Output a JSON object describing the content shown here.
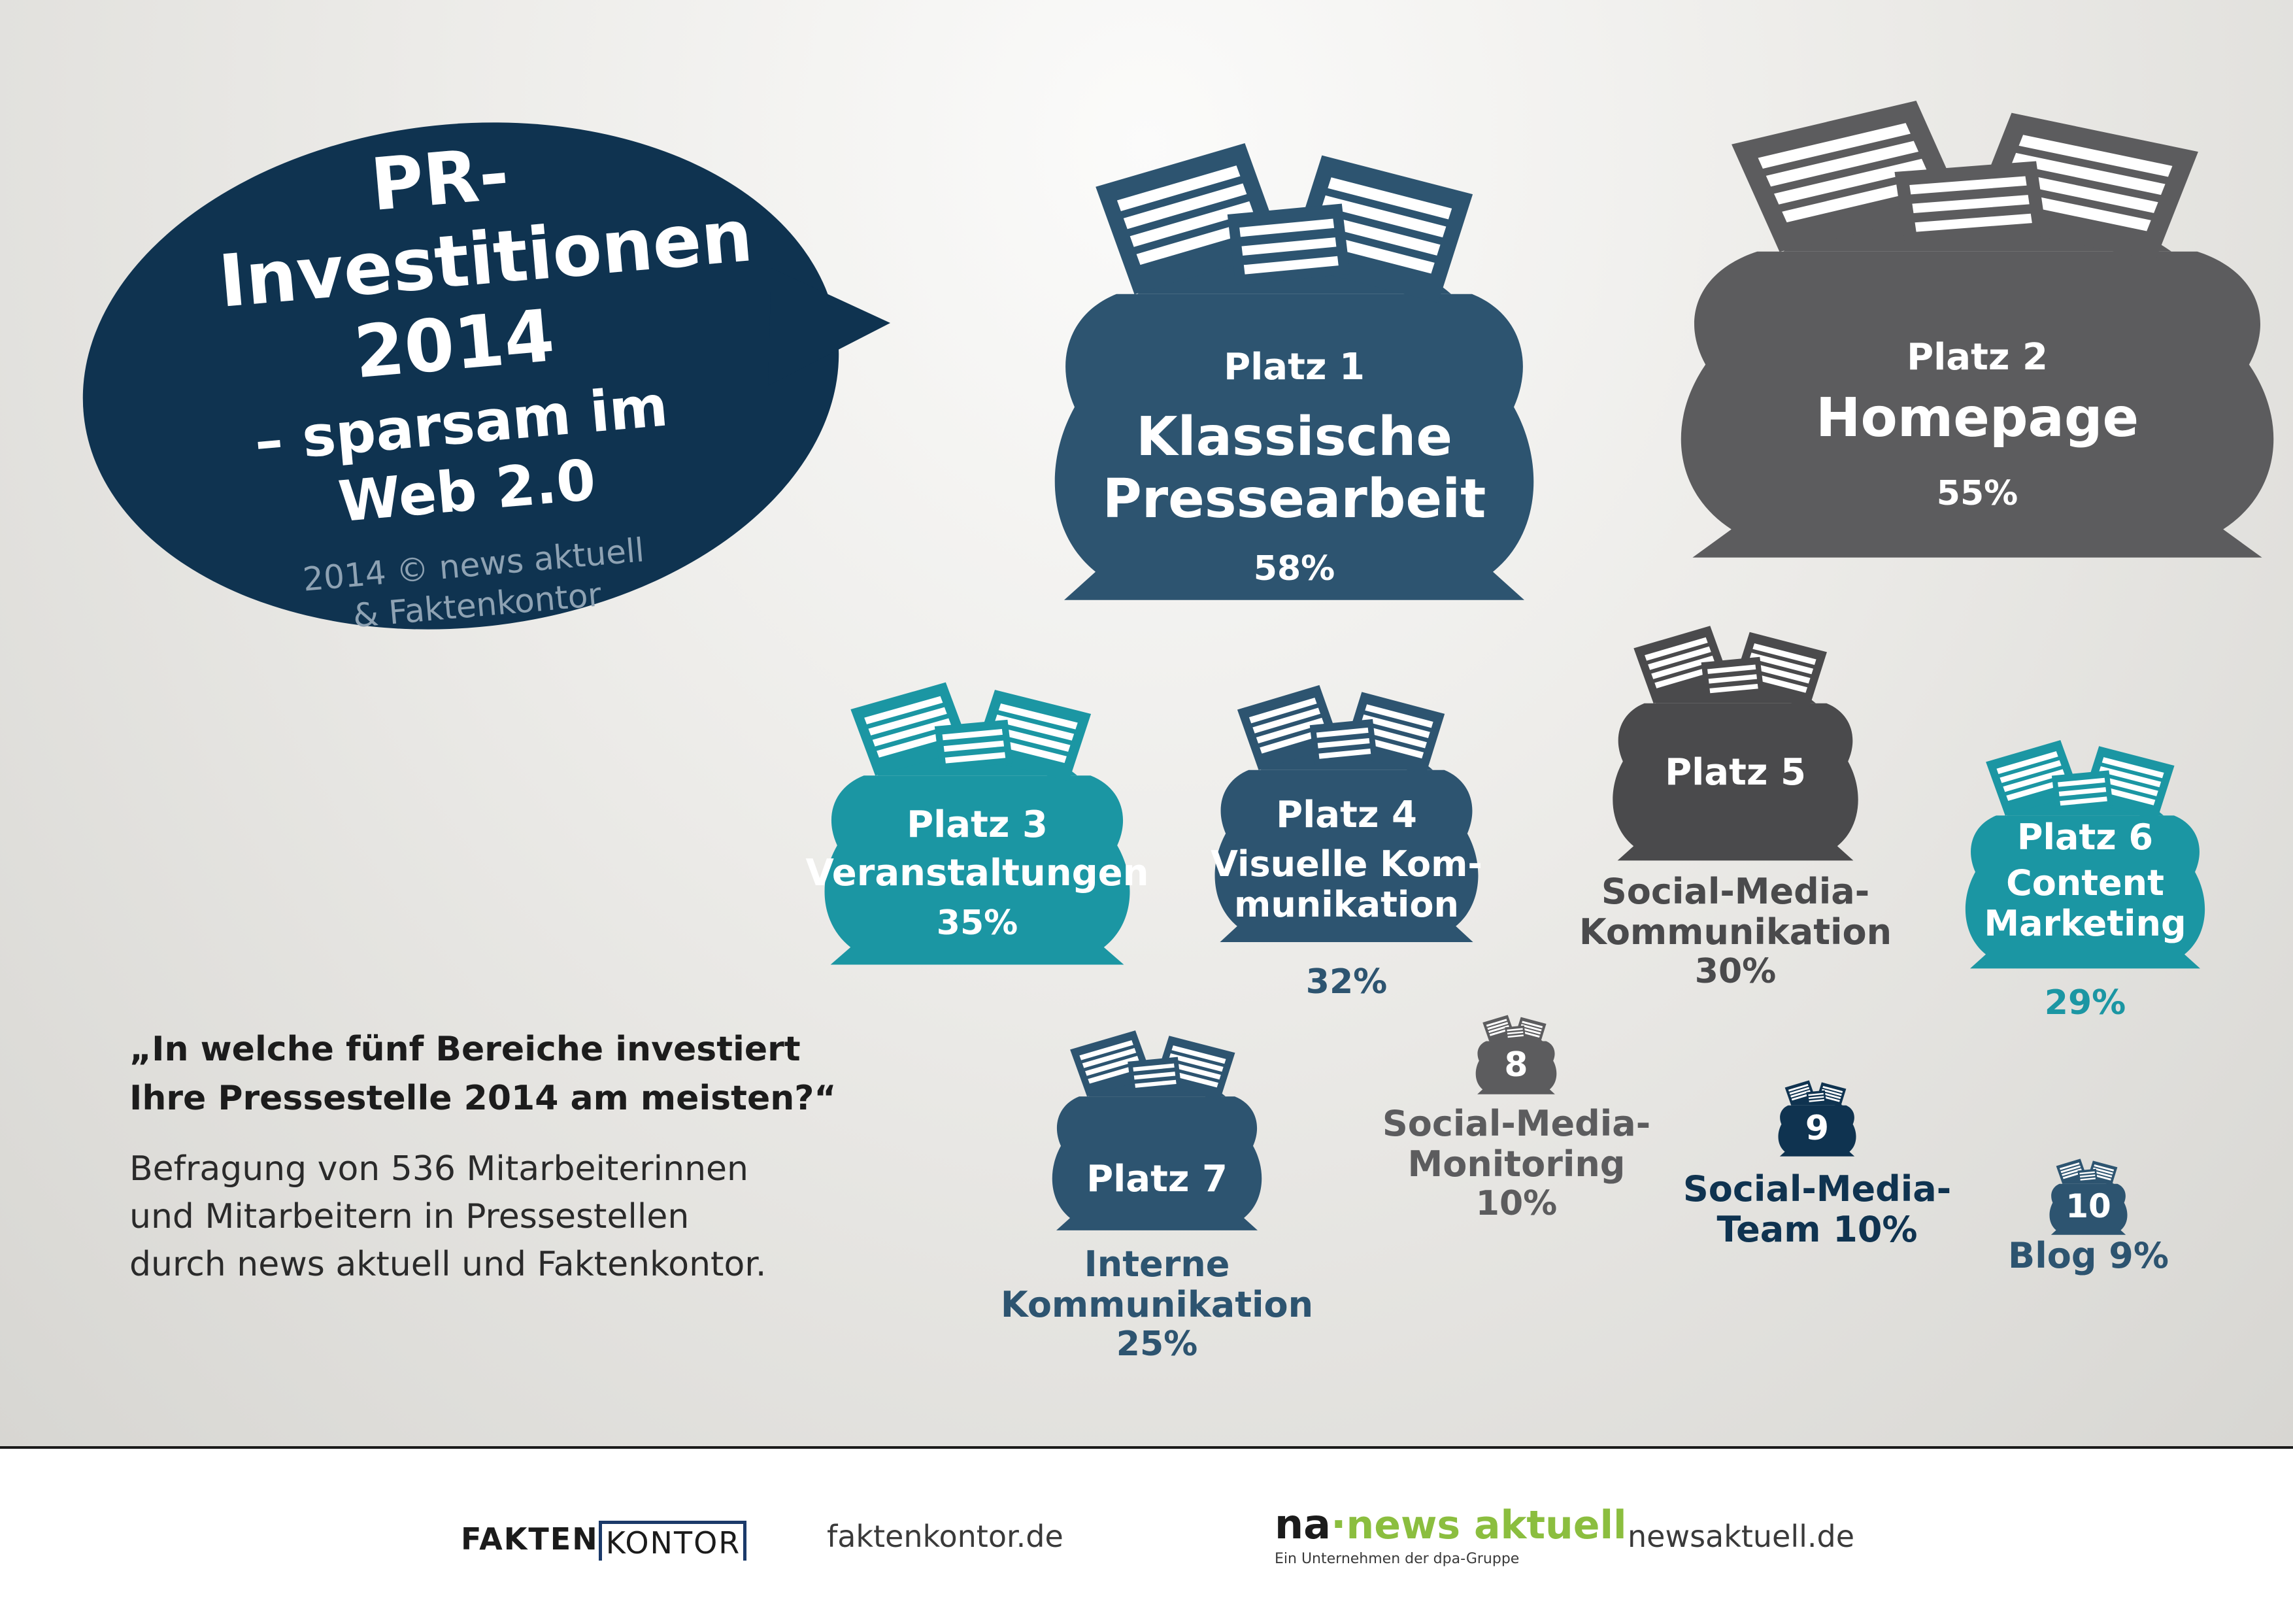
{
  "title": {
    "line1": "PR-",
    "line2": "Investitionen",
    "line3": "2014",
    "line4": "– sparsam im Web 2.0",
    "credit1": "2014 © news aktuell",
    "credit2": "& Faktenkontor"
  },
  "colors": {
    "navy": "#0f3350",
    "petrol": "#2d5470",
    "teal": "#1b96a3",
    "gray": "#5c5c5e",
    "darkgray": "#4a4a4c",
    "credit": "#8ea2b3",
    "green": "#8bbe3f"
  },
  "question": {
    "line1": "„In welche fünf Bereiche investiert",
    "line2": "Ihre Pressestelle 2014 am meisten?“"
  },
  "description": {
    "line1": "Befragung von 536 Mitarbeiterinnen",
    "line2": "und Mitarbeitern in Pressestellen",
    "line3": "durch news aktuell und Faktenkontor."
  },
  "ranks": [
    {
      "platz": "Platz 1",
      "name1": "Klassische",
      "name2": "Pressearbeit",
      "percent": "58%",
      "value": 58
    },
    {
      "platz": "Platz 2",
      "name1": "Homepage",
      "percent": "55%",
      "value": 55
    },
    {
      "platz": "Platz 3",
      "name1": "Veranstaltungen",
      "percent": "35%",
      "value": 35
    },
    {
      "platz": "Platz 4",
      "name1": "Visuelle Kom-",
      "name2": "munikation",
      "percent": "32%",
      "value": 32
    },
    {
      "platz": "Platz 5",
      "name1": "Social-Media-",
      "name2": "Kommunikation",
      "percent": "30%",
      "value": 30
    },
    {
      "platz": "Platz 6",
      "name1": "Content",
      "name2": "Marketing",
      "percent": "29%",
      "value": 29
    },
    {
      "platz": "Platz 7",
      "name1": "Interne",
      "name2": "Kommunikation",
      "percent": "25%",
      "value": 25
    },
    {
      "number": "8",
      "name1": "Social-Media-",
      "name2": "Monitoring",
      "percent": "10%",
      "value": 10
    },
    {
      "number": "9",
      "name1": "Social-Media-",
      "name2": "Team 10%",
      "value": 10
    },
    {
      "number": "10",
      "name1": "Blog 9%",
      "value": 9
    }
  ],
  "footer": {
    "fakten_logo_a": "FAKTEN",
    "fakten_logo_b": "KONTOR",
    "fakten_url": "faktenkontor.de",
    "na_logo_a": "na",
    "na_logo_b": "news aktuell",
    "na_sub": "Ein Unternehmen der dpa-Gruppe",
    "na_url": "newsaktuell.de"
  }
}
